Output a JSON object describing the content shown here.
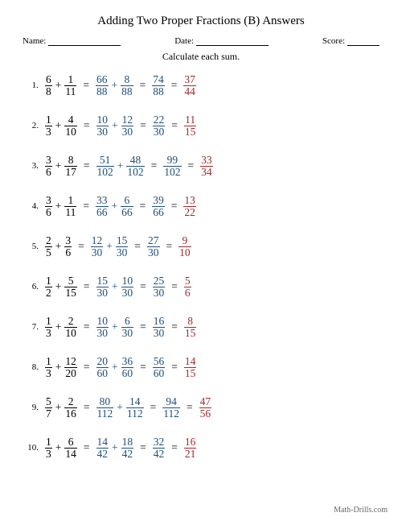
{
  "title": "Adding Two Proper Fractions (B) Answers",
  "header": {
    "name_label": "Name:",
    "date_label": "Date:",
    "score_label": "Score:"
  },
  "instruction": "Calculate each sum.",
  "colors": {
    "original": "#000000",
    "work": "#1f4e79",
    "answer": "#9c2b2e",
    "background": "#ffffff"
  },
  "problems": [
    {
      "num": "1.",
      "a": {
        "n": "6",
        "d": "8"
      },
      "b": {
        "n": "1",
        "d": "11"
      },
      "c": {
        "n": "66",
        "d": "88"
      },
      "d": {
        "n": "8",
        "d": "88"
      },
      "sum": {
        "n": "74",
        "d": "88"
      },
      "ans": {
        "n": "37",
        "d": "44"
      }
    },
    {
      "num": "2.",
      "a": {
        "n": "1",
        "d": "3"
      },
      "b": {
        "n": "4",
        "d": "10"
      },
      "c": {
        "n": "10",
        "d": "30"
      },
      "d": {
        "n": "12",
        "d": "30"
      },
      "sum": {
        "n": "22",
        "d": "30"
      },
      "ans": {
        "n": "11",
        "d": "15"
      }
    },
    {
      "num": "3.",
      "a": {
        "n": "3",
        "d": "6"
      },
      "b": {
        "n": "8",
        "d": "17"
      },
      "c": {
        "n": "51",
        "d": "102"
      },
      "d": {
        "n": "48",
        "d": "102"
      },
      "sum": {
        "n": "99",
        "d": "102"
      },
      "ans": {
        "n": "33",
        "d": "34"
      }
    },
    {
      "num": "4.",
      "a": {
        "n": "3",
        "d": "6"
      },
      "b": {
        "n": "1",
        "d": "11"
      },
      "c": {
        "n": "33",
        "d": "66"
      },
      "d": {
        "n": "6",
        "d": "66"
      },
      "sum": {
        "n": "39",
        "d": "66"
      },
      "ans": {
        "n": "13",
        "d": "22"
      }
    },
    {
      "num": "5.",
      "a": {
        "n": "2",
        "d": "5"
      },
      "b": {
        "n": "3",
        "d": "6"
      },
      "c": {
        "n": "12",
        "d": "30"
      },
      "d": {
        "n": "15",
        "d": "30"
      },
      "sum": {
        "n": "27",
        "d": "30"
      },
      "ans": {
        "n": "9",
        "d": "10"
      }
    },
    {
      "num": "6.",
      "a": {
        "n": "1",
        "d": "2"
      },
      "b": {
        "n": "5",
        "d": "15"
      },
      "c": {
        "n": "15",
        "d": "30"
      },
      "d": {
        "n": "10",
        "d": "30"
      },
      "sum": {
        "n": "25",
        "d": "30"
      },
      "ans": {
        "n": "5",
        "d": "6"
      }
    },
    {
      "num": "7.",
      "a": {
        "n": "1",
        "d": "3"
      },
      "b": {
        "n": "2",
        "d": "10"
      },
      "c": {
        "n": "10",
        "d": "30"
      },
      "d": {
        "n": "6",
        "d": "30"
      },
      "sum": {
        "n": "16",
        "d": "30"
      },
      "ans": {
        "n": "8",
        "d": "15"
      }
    },
    {
      "num": "8.",
      "a": {
        "n": "1",
        "d": "3"
      },
      "b": {
        "n": "12",
        "d": "20"
      },
      "c": {
        "n": "20",
        "d": "60"
      },
      "d": {
        "n": "36",
        "d": "60"
      },
      "sum": {
        "n": "56",
        "d": "60"
      },
      "ans": {
        "n": "14",
        "d": "15"
      }
    },
    {
      "num": "9.",
      "a": {
        "n": "5",
        "d": "7"
      },
      "b": {
        "n": "2",
        "d": "16"
      },
      "c": {
        "n": "80",
        "d": "112"
      },
      "d": {
        "n": "14",
        "d": "112"
      },
      "sum": {
        "n": "94",
        "d": "112"
      },
      "ans": {
        "n": "47",
        "d": "56"
      }
    },
    {
      "num": "10.",
      "a": {
        "n": "1",
        "d": "3"
      },
      "b": {
        "n": "6",
        "d": "14"
      },
      "c": {
        "n": "14",
        "d": "42"
      },
      "d": {
        "n": "18",
        "d": "42"
      },
      "sum": {
        "n": "32",
        "d": "42"
      },
      "ans": {
        "n": "16",
        "d": "21"
      }
    }
  ],
  "footer": "Math-Drills.com"
}
